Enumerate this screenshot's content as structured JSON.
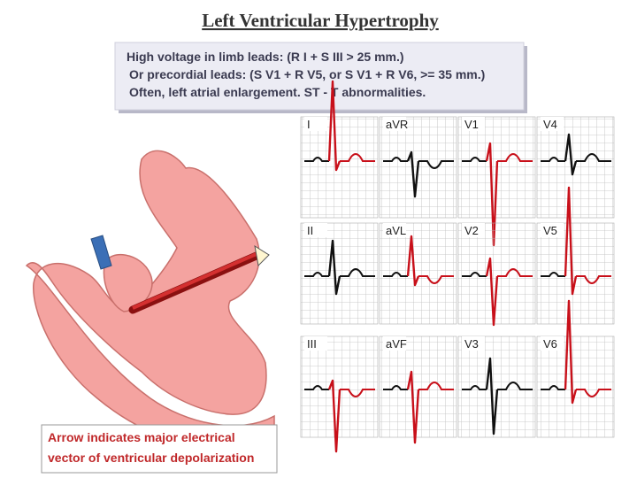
{
  "title": "Left Ventricular Hypertrophy",
  "criteria": [
    "High voltage in limb leads: (R I + S III > 25 mm.)",
    "Or precordial leads: (S V1 + R V5, or S V1 + R V6,  >= 35 mm.)",
    "Often, left atrial enlargement. ST - T abnormalities."
  ],
  "leads": [
    "I",
    "aVR",
    "V1",
    "V4",
    "II",
    "aVL",
    "V2",
    "V5",
    "III",
    "aVF",
    "V3",
    "V6"
  ],
  "caption": [
    "Arrow indicates major electrical",
    "vector of ventricular depolarization"
  ]
}
